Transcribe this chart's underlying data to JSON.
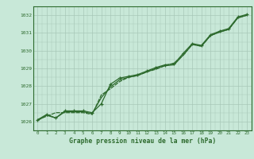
{
  "x": [
    0,
    1,
    2,
    3,
    4,
    5,
    6,
    7,
    8,
    9,
    10,
    11,
    12,
    13,
    14,
    15,
    16,
    17,
    18,
    19,
    20,
    21,
    22,
    23
  ],
  "series1": [
    1026.1,
    1026.4,
    1026.2,
    1026.6,
    1026.6,
    1026.6,
    1026.5,
    1027.0,
    1028.1,
    1028.45,
    1028.55,
    1028.65,
    1028.85,
    1029.05,
    1029.2,
    1029.25,
    1029.85,
    1030.4,
    1030.3,
    1030.9,
    1031.1,
    1031.25,
    1031.9,
    1032.05
  ],
  "series2": [
    1026.05,
    1026.35,
    1026.2,
    1026.55,
    1026.55,
    1026.55,
    1026.45,
    1027.35,
    1027.95,
    1028.35,
    1028.5,
    1028.6,
    1028.8,
    1029.0,
    1029.15,
    1029.2,
    1029.75,
    1030.35,
    1030.25,
    1030.85,
    1031.05,
    1031.2,
    1031.85,
    1032.0
  ],
  "series3": [
    1026.1,
    1026.3,
    1026.5,
    1026.5,
    1026.5,
    1026.5,
    1026.4,
    1027.5,
    1027.85,
    1028.25,
    1028.5,
    1028.6,
    1028.8,
    1028.95,
    1029.15,
    1029.3,
    1029.75,
    1030.35,
    1030.25,
    1030.85,
    1031.05,
    1031.2,
    1031.85,
    1032.0
  ],
  "line_color": "#2d6a2d",
  "bg_color": "#c8e8d8",
  "grid_color": "#a8c8b8",
  "xlabel": "Graphe pression niveau de la mer (hPa)",
  "ylim_min": 1025.5,
  "ylim_max": 1032.5,
  "yticks": [
    1026,
    1027,
    1028,
    1029,
    1030,
    1031,
    1032
  ],
  "xticks": [
    0,
    1,
    2,
    3,
    4,
    5,
    6,
    7,
    8,
    9,
    10,
    11,
    12,
    13,
    14,
    15,
    16,
    17,
    18,
    19,
    20,
    21,
    22,
    23
  ]
}
